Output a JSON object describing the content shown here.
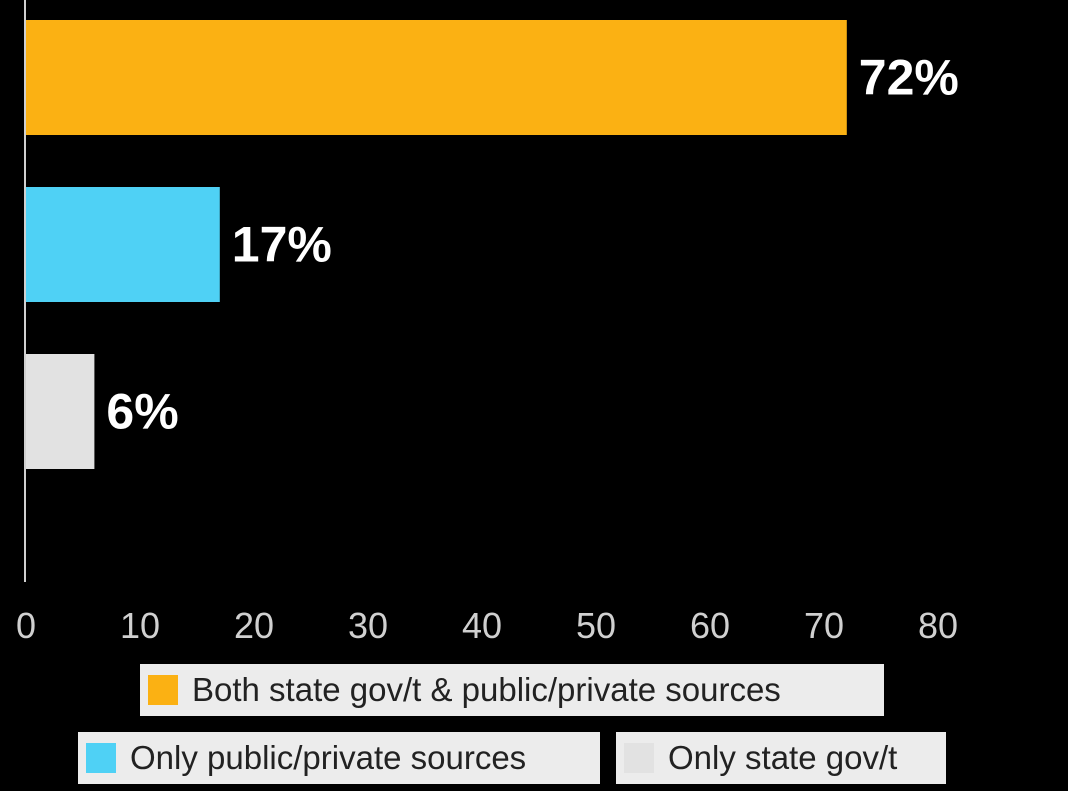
{
  "chart_data": {
    "type": "bar",
    "orientation": "horizontal",
    "categories": [
      "Both state gov't & public/private sources",
      "Only public/private sources",
      "Only state gov't"
    ],
    "values": [
      72,
      17,
      6
    ],
    "data_labels": [
      "72%",
      "17%",
      "6%"
    ],
    "colors": [
      "#fbb113",
      "#4fd1f5",
      "#e2e2e2"
    ],
    "xlim": [
      0,
      80
    ],
    "xticks": [
      0,
      10,
      20,
      30,
      40,
      50,
      60,
      70,
      80
    ],
    "grid": false,
    "legend": {
      "placement": "bottom",
      "entries": [
        "Both state gov/t & public/private sources",
        "Only public/private sources",
        "Only state gov/t"
      ]
    },
    "background": "#000000",
    "axis_color": "#d0d0d0",
    "tick_label_color": "#d0d0d0",
    "data_label_color": "#ffffff"
  }
}
